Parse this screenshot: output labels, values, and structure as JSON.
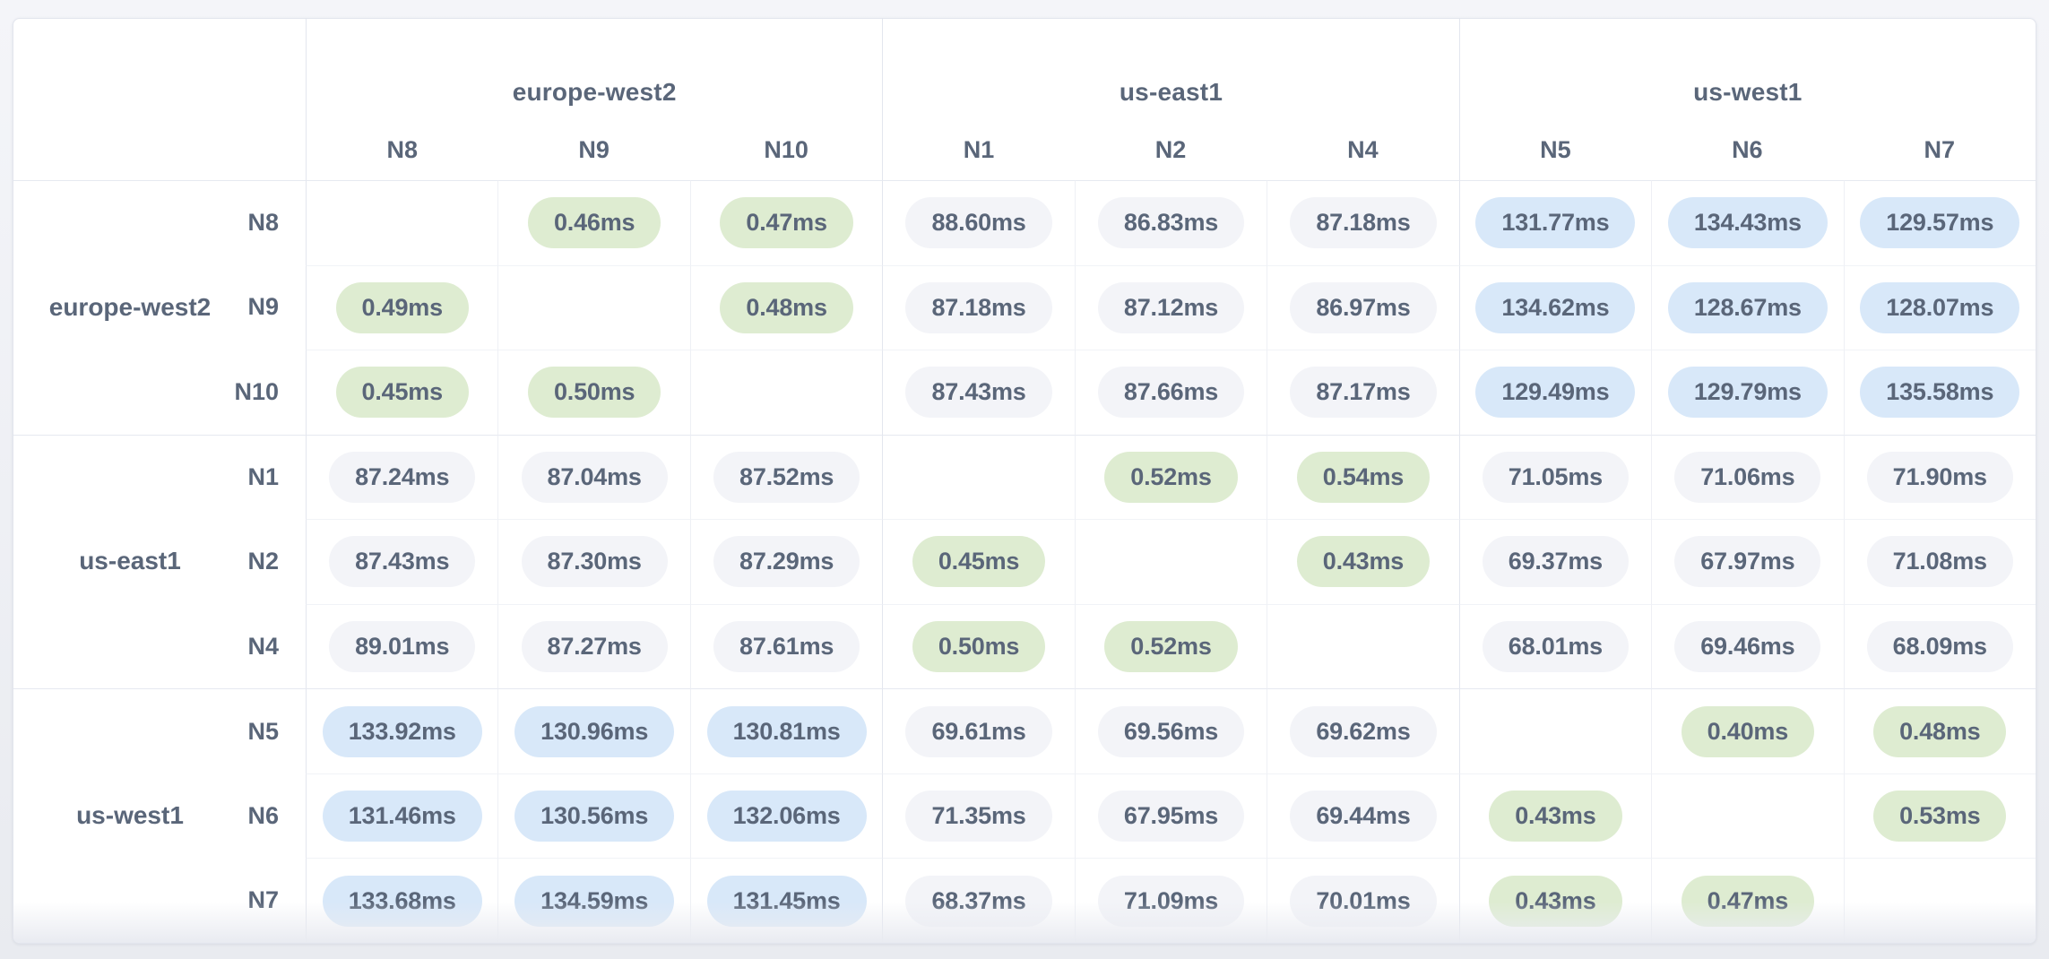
{
  "theme": {
    "page_bg_top": "#f4f5f9",
    "page_bg_bottom": "#e9ebf0",
    "card_bg": "#ffffff",
    "card_border": "#e2e5ed",
    "text": "#5a6679",
    "badge_low_bg": "#deecd1",
    "badge_mid_bg": "#f3f4f8",
    "badge_high_bg": "#d8e8f9",
    "grid_group_line": "#e3e6ee",
    "grid_inner_col_line": "#eef0f5",
    "grid_group_row_line": "#e6e9f0",
    "grid_inner_row_line": "#f1f3f7",
    "fade_bottom": "#e9ebf1"
  },
  "chart_data": {
    "type": "heatmap",
    "title": "",
    "unit": "ms",
    "legend_position": "none",
    "grid": true,
    "col_groups": [
      {
        "label": "europe-west2",
        "nodes": [
          "N8",
          "N9",
          "N10"
        ]
      },
      {
        "label": "us-east1",
        "nodes": [
          "N1",
          "N2",
          "N4"
        ]
      },
      {
        "label": "us-west1",
        "nodes": [
          "N5",
          "N6",
          "N7"
        ]
      }
    ],
    "row_groups": [
      {
        "label": "europe-west2",
        "nodes": [
          "N8",
          "N9",
          "N10"
        ]
      },
      {
        "label": "us-east1",
        "nodes": [
          "N1",
          "N2",
          "N4"
        ]
      },
      {
        "label": "us-west1",
        "nodes": [
          "N5",
          "N6",
          "N7"
        ]
      }
    ],
    "rows": [
      "N8",
      "N9",
      "N10",
      "N1",
      "N2",
      "N4",
      "N5",
      "N6",
      "N7"
    ],
    "cols": [
      "N8",
      "N9",
      "N10",
      "N1",
      "N2",
      "N4",
      "N5",
      "N6",
      "N7"
    ],
    "values": [
      [
        null,
        0.46,
        0.47,
        88.6,
        86.83,
        87.18,
        131.77,
        134.43,
        129.57
      ],
      [
        0.49,
        null,
        0.48,
        87.18,
        87.12,
        86.97,
        134.62,
        128.67,
        128.07
      ],
      [
        0.45,
        0.5,
        null,
        87.43,
        87.66,
        87.17,
        129.49,
        129.79,
        135.58
      ],
      [
        87.24,
        87.04,
        87.52,
        null,
        0.52,
        0.54,
        71.05,
        71.06,
        71.9
      ],
      [
        87.43,
        87.3,
        87.29,
        0.45,
        null,
        0.43,
        69.37,
        67.97,
        71.08
      ],
      [
        89.01,
        87.27,
        87.61,
        0.5,
        0.52,
        null,
        68.01,
        69.46,
        68.09
      ],
      [
        133.92,
        130.96,
        130.81,
        69.61,
        69.56,
        69.62,
        null,
        0.4,
        0.48
      ],
      [
        131.46,
        130.56,
        132.06,
        71.35,
        67.95,
        69.44,
        0.43,
        null,
        0.53
      ],
      [
        133.68,
        134.59,
        131.45,
        68.37,
        71.09,
        70.01,
        0.43,
        0.47,
        null
      ]
    ],
    "display": [
      [
        "",
        "0.46ms",
        "0.47ms",
        "88.60ms",
        "86.83ms",
        "87.18ms",
        "131.77ms",
        "134.43ms",
        "129.57ms"
      ],
      [
        "0.49ms",
        "",
        "0.48ms",
        "87.18ms",
        "87.12ms",
        "86.97ms",
        "134.62ms",
        "128.67ms",
        "128.07ms"
      ],
      [
        "0.45ms",
        "0.50ms",
        "",
        "87.43ms",
        "87.66ms",
        "87.17ms",
        "129.49ms",
        "129.79ms",
        "135.58ms"
      ],
      [
        "87.24ms",
        "87.04ms",
        "87.52ms",
        "",
        "0.52ms",
        "0.54ms",
        "71.05ms",
        "71.06ms",
        "71.90ms"
      ],
      [
        "87.43ms",
        "87.30ms",
        "87.29ms",
        "0.45ms",
        "",
        "0.43ms",
        "69.37ms",
        "67.97ms",
        "71.08ms"
      ],
      [
        "89.01ms",
        "87.27ms",
        "87.61ms",
        "0.50ms",
        "0.52ms",
        "",
        "68.01ms",
        "69.46ms",
        "68.09ms"
      ],
      [
        "133.92ms",
        "130.96ms",
        "130.81ms",
        "69.61ms",
        "69.56ms",
        "69.62ms",
        "",
        "0.40ms",
        "0.48ms"
      ],
      [
        "131.46ms",
        "130.56ms",
        "132.06ms",
        "71.35ms",
        "67.95ms",
        "69.44ms",
        "0.43ms",
        "",
        "0.53ms"
      ],
      [
        "133.68ms",
        "134.59ms",
        "131.45ms",
        "68.37ms",
        "71.09ms",
        "70.01ms",
        "0.43ms",
        "0.47ms",
        ""
      ]
    ],
    "tone_thresholds": {
      "low_below_ms": 1,
      "high_at_or_above_ms": 100
    },
    "tone_colors": {
      "low": "#deecd1",
      "mid": "#f3f4f8",
      "high": "#d8e8f9"
    }
  }
}
